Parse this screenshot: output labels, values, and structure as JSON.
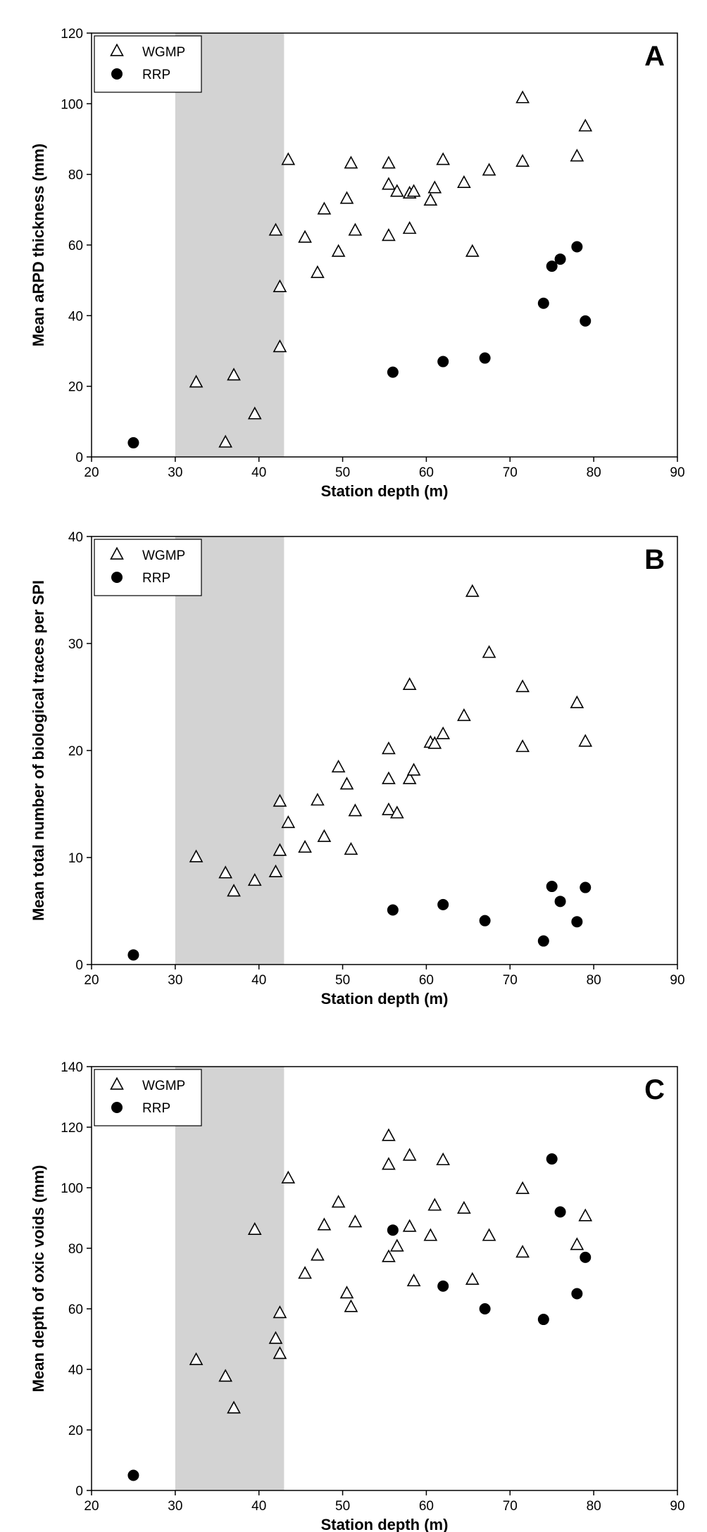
{
  "chart_data": [
    {
      "type": "scatter",
      "panel_label": "A",
      "xlabel": "Station depth (m)",
      "ylabel": "Mean aRPD thickness (mm)",
      "xlim": [
        20,
        90
      ],
      "ylim": [
        0,
        120
      ],
      "xticks": [
        20,
        30,
        40,
        50,
        60,
        70,
        80,
        90
      ],
      "yticks": [
        0,
        20,
        40,
        60,
        80,
        100,
        120
      ],
      "shaded_x_range": [
        30,
        43
      ],
      "legend_position": "top-left",
      "series": [
        {
          "name": "WGMP",
          "marker": "triangle-open",
          "x": [
            32.5,
            36,
            37,
            39.5,
            42,
            42.5,
            42.5,
            43.5,
            45.5,
            47,
            47.8,
            49.5,
            50.5,
            51,
            51.5,
            55.5,
            55.5,
            55.5,
            56.5,
            58,
            58,
            58.5,
            60.5,
            61,
            62,
            64.5,
            65.5,
            67.5,
            71.5,
            71.5,
            78,
            79
          ],
          "y": [
            21,
            4,
            23,
            12,
            64,
            31,
            48,
            84,
            62,
            52,
            70,
            58,
            73,
            83,
            64,
            83,
            77,
            62.5,
            75,
            74.5,
            64.5,
            75,
            72.5,
            76,
            84,
            77.5,
            58,
            81,
            83.5,
            101.5,
            85,
            93.5
          ]
        },
        {
          "name": "RRP",
          "marker": "circle-filled",
          "x": [
            25,
            56,
            62,
            67,
            74,
            75,
            76,
            78,
            79
          ],
          "y": [
            4,
            24,
            27,
            28,
            43.5,
            54,
            56,
            59.5,
            38.5
          ]
        }
      ]
    },
    {
      "type": "scatter",
      "panel_label": "B",
      "xlabel": "Station depth (m)",
      "ylabel": "Mean total number of biological traces per SPI",
      "xlim": [
        20,
        90
      ],
      "ylim": [
        0,
        40
      ],
      "xticks": [
        20,
        30,
        40,
        50,
        60,
        70,
        80,
        90
      ],
      "yticks": [
        0,
        10,
        20,
        30,
        40
      ],
      "shaded_x_range": [
        30,
        43
      ],
      "legend_position": "top-left",
      "series": [
        {
          "name": "WGMP",
          "marker": "triangle-open",
          "x": [
            32.5,
            36,
            37,
            39.5,
            42,
            42.5,
            42.5,
            43.5,
            45.5,
            47,
            47.8,
            49.5,
            50.5,
            51,
            51.5,
            55.5,
            55.5,
            55.5,
            56.5,
            58,
            58,
            58.5,
            60.5,
            61,
            62,
            64.5,
            65.5,
            67.5,
            71.5,
            71.5,
            78,
            79
          ],
          "y": [
            10,
            8.5,
            6.8,
            7.8,
            8.6,
            10.6,
            15.2,
            13.2,
            10.9,
            15.3,
            11.9,
            18.4,
            16.8,
            10.7,
            14.3,
            20.1,
            17.3,
            14.4,
            14.1,
            26.1,
            17.3,
            18.1,
            20.7,
            20.6,
            21.5,
            23.2,
            34.8,
            29.1,
            25.9,
            20.3,
            24.4,
            20.8
          ]
        },
        {
          "name": "RRP",
          "marker": "circle-filled",
          "x": [
            25,
            56,
            62,
            67,
            74,
            75,
            76,
            78,
            79
          ],
          "y": [
            0.9,
            5.1,
            5.6,
            4.1,
            2.2,
            7.3,
            5.9,
            4.0,
            7.2
          ]
        }
      ]
    },
    {
      "type": "scatter",
      "panel_label": "C",
      "xlabel": "Station depth (m)",
      "ylabel": "Mean depth of oxic voids (mm)",
      "xlim": [
        20,
        90
      ],
      "ylim": [
        0,
        140
      ],
      "xticks": [
        20,
        30,
        40,
        50,
        60,
        70,
        80,
        90
      ],
      "yticks": [
        0,
        20,
        40,
        60,
        80,
        100,
        120,
        140
      ],
      "shaded_x_range": [
        30,
        43
      ],
      "legend_position": "top-left",
      "series": [
        {
          "name": "WGMP",
          "marker": "triangle-open",
          "x": [
            32.5,
            36,
            37,
            39.5,
            42,
            42.5,
            42.5,
            43.5,
            45.5,
            47,
            47.8,
            49.5,
            50.5,
            51,
            51.5,
            55.5,
            55.5,
            55.5,
            56.5,
            58,
            58,
            58.5,
            60.5,
            61,
            62,
            64.5,
            65.5,
            67.5,
            71.5,
            71.5,
            78,
            79
          ],
          "y": [
            43,
            37.5,
            27,
            86,
            50,
            58.5,
            45,
            103,
            71.5,
            77.5,
            87.5,
            95,
            65,
            60.5,
            88.5,
            117,
            107.5,
            77,
            80.5,
            110.5,
            87,
            69,
            84,
            94,
            109,
            93,
            69.5,
            84,
            99.5,
            78.5,
            81,
            90.5
          ]
        },
        {
          "name": "RRP",
          "marker": "circle-filled",
          "x": [
            25,
            56,
            62,
            67,
            74,
            75,
            76,
            78,
            79
          ],
          "y": [
            5,
            86,
            67.5,
            60,
            56.5,
            109.5,
            92,
            65,
            77
          ]
        }
      ]
    }
  ]
}
